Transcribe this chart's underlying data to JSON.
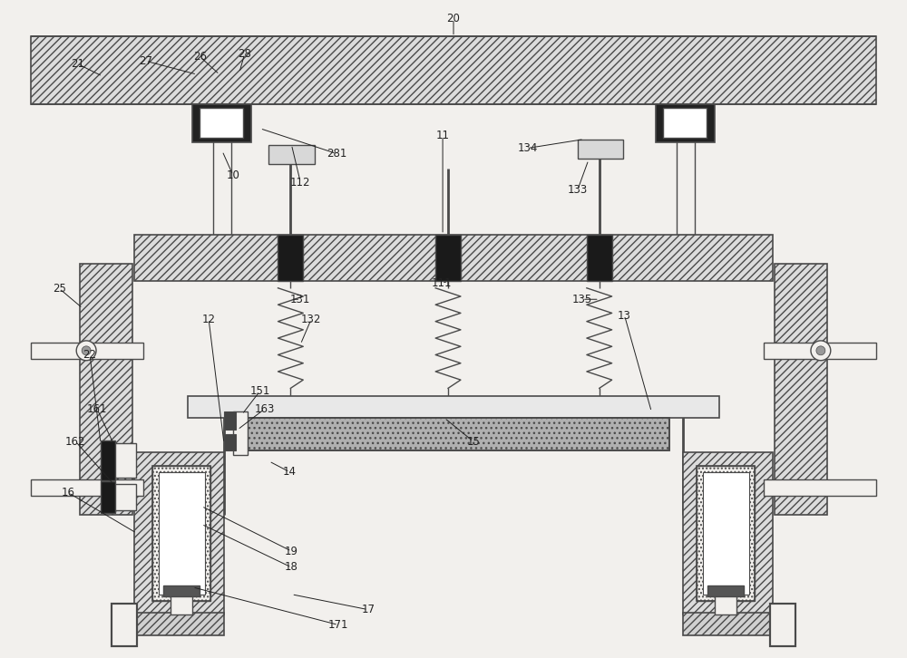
{
  "bg_color": "#f2f0ed",
  "line_color": "#4a4a4a",
  "dark_color": "#222222",
  "white_color": "#ffffff",
  "fig_width": 10.0,
  "fig_height": 7.26
}
